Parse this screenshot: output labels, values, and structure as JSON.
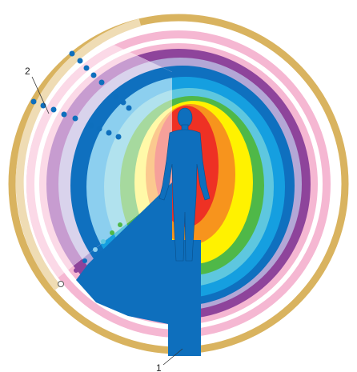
{
  "labels": {
    "one": "1",
    "two": "2"
  },
  "colors": {
    "outer_ring": "#d9b35f",
    "outer_ring_faded": "#efdcb4",
    "ring_pink": "#f5b7d2",
    "ring_purple": "#8e449b",
    "ring_lavender": "#b3a7d6",
    "ring_blue_dark": "#0f70bf",
    "ring_blue": "#159fe0",
    "ring_cyan": "#5ec7df",
    "ring_green": "#4fb848",
    "ring_yellow": "#fff200",
    "ring_orange": "#f7941d",
    "ring_red": "#ee3124",
    "figure_blue": "#0e6fbd",
    "dot_blue": "#0e6fbd",
    "dot_green": "#4fb848"
  }
}
